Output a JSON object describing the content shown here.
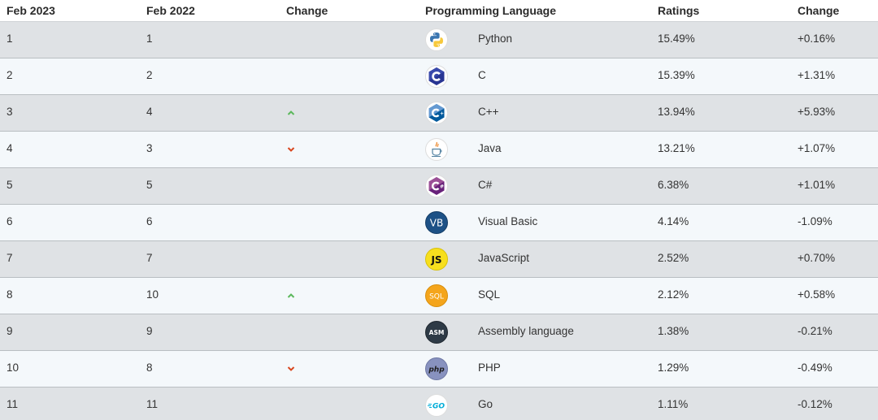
{
  "headers": {
    "col1": "Feb 2023",
    "col2": "Feb 2022",
    "col3": "Change",
    "col4": "Programming Language",
    "col5": "Ratings",
    "col6": "Change"
  },
  "colors": {
    "up": "#5cb85c",
    "down": "#d9471f",
    "row_odd": "#dfe2e5",
    "row_even": "#f4f8fb"
  },
  "rows": [
    {
      "rank_2023": "1",
      "rank_2022": "1",
      "trend": "none",
      "logo": "python-icon",
      "language": "Python",
      "rating": "15.49%",
      "change": "+0.16%"
    },
    {
      "rank_2023": "2",
      "rank_2022": "2",
      "trend": "none",
      "logo": "c-icon",
      "language": "C",
      "rating": "15.39%",
      "change": "+1.31%"
    },
    {
      "rank_2023": "3",
      "rank_2022": "4",
      "trend": "up",
      "logo": "cpp-icon",
      "language": "C++",
      "rating": "13.94%",
      "change": "+5.93%"
    },
    {
      "rank_2023": "4",
      "rank_2022": "3",
      "trend": "down",
      "logo": "java-icon",
      "language": "Java",
      "rating": "13.21%",
      "change": "+1.07%"
    },
    {
      "rank_2023": "5",
      "rank_2022": "5",
      "trend": "none",
      "logo": "csharp-icon",
      "language": "C#",
      "rating": "6.38%",
      "change": "+1.01%"
    },
    {
      "rank_2023": "6",
      "rank_2022": "6",
      "trend": "none",
      "logo": "visual-basic-icon",
      "language": "Visual Basic",
      "rating": "4.14%",
      "change": "-1.09%"
    },
    {
      "rank_2023": "7",
      "rank_2022": "7",
      "trend": "none",
      "logo": "javascript-icon",
      "language": "JavaScript",
      "rating": "2.52%",
      "change": "+0.70%"
    },
    {
      "rank_2023": "8",
      "rank_2022": "10",
      "trend": "up",
      "logo": "sql-icon",
      "language": "SQL",
      "rating": "2.12%",
      "change": "+0.58%"
    },
    {
      "rank_2023": "9",
      "rank_2022": "9",
      "trend": "none",
      "logo": "assembly-icon",
      "language": "Assembly language",
      "rating": "1.38%",
      "change": "-0.21%"
    },
    {
      "rank_2023": "10",
      "rank_2022": "8",
      "trend": "down",
      "logo": "php-icon",
      "language": "PHP",
      "rating": "1.29%",
      "change": "-0.49%"
    },
    {
      "rank_2023": "11",
      "rank_2022": "11",
      "trend": "none",
      "logo": "go-icon",
      "language": "Go",
      "rating": "1.11%",
      "change": "-0.12%"
    }
  ]
}
